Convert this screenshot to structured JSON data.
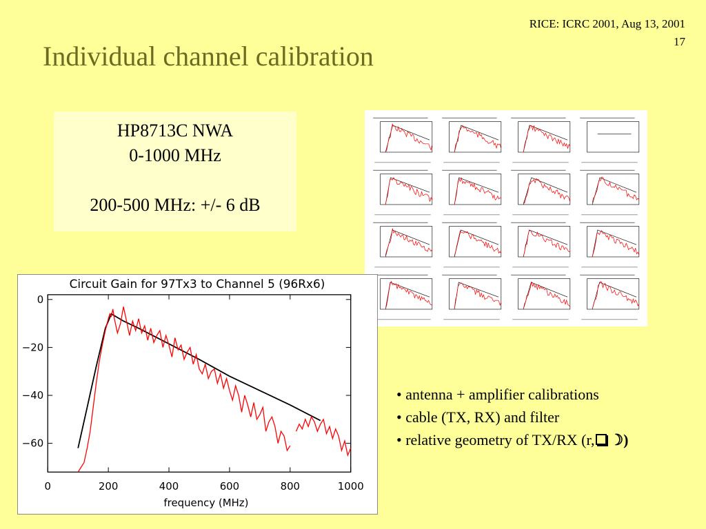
{
  "header": {
    "meta": "RICE: ICRC 2001, Aug 13, 2001",
    "page_number": "17"
  },
  "title": "Individual channel calibration",
  "nwa_box": {
    "line1": "HP8713C NWA",
    "line2": "0-1000 MHz",
    "line3": "200-500 MHz:  +/- 6 dB"
  },
  "bullets": [
    "antenna + amplifier calibrations",
    "cable (TX, RX) and filter",
    "relative geometry of TX/RX (r,"
  ],
  "bullet_icons": [
    "square-shadow-icon",
    "moon-icon"
  ],
  "colors": {
    "background": "#ffff99",
    "title": "#6b6b22",
    "box": "#ffffcc",
    "measured": "#ff0000",
    "model": "#000000"
  },
  "thumbnail_grid": {
    "rows": 4,
    "cols": 4,
    "flat_cell": 3
  },
  "chart_data": {
    "type": "line",
    "title": "Circuit Gain for 97Tx3 to Channel 5 (96Rx6)",
    "xlabel": "frequency (MHz)",
    "ylabel": "",
    "xlim": [
      0,
      1000
    ],
    "ylim": [
      -72,
      2
    ],
    "xticks": [
      0,
      200,
      400,
      600,
      800,
      1000
    ],
    "yticks": [
      0,
      -20,
      -40,
      -60
    ],
    "grid": false,
    "series": [
      {
        "color": "#000000",
        "x": [
          100,
          130,
          160,
          190,
          210,
          250,
          300,
          400,
          500,
          600,
          700,
          800,
          900
        ],
        "y": [
          -62,
          -45,
          -28,
          -12,
          -6,
          -9,
          -12,
          -18.5,
          -25,
          -32,
          -38,
          -44,
          -50.5
        ]
      },
      {
        "color": "#ff0000",
        "x": [
          100,
          110,
          120,
          130,
          140,
          150,
          160,
          170,
          180,
          190,
          200,
          205,
          210,
          215,
          220,
          230,
          240,
          250,
          260,
          270,
          280,
          290,
          300,
          310,
          320,
          330,
          340,
          350,
          360,
          370,
          380,
          390,
          400,
          410,
          420,
          430,
          440,
          450,
          460,
          470,
          480,
          490,
          500,
          510,
          520,
          530,
          540,
          550,
          560,
          570,
          580,
          590,
          600,
          610,
          620,
          630,
          640,
          650,
          660,
          670,
          680,
          690,
          700,
          710,
          720,
          730,
          740,
          750,
          760,
          770,
          780,
          790,
          800
        ],
        "y": [
          -72,
          -70,
          -68,
          -62,
          -55,
          -45,
          -35,
          -26,
          -19,
          -13,
          -8,
          -6,
          -7,
          -4,
          -8,
          -14,
          -10,
          -3,
          -9,
          -15,
          -9,
          -13,
          -8,
          -14,
          -11,
          -17,
          -12,
          -18,
          -15,
          -13,
          -20,
          -15,
          -19,
          -24,
          -16,
          -21,
          -19,
          -25,
          -22,
          -20,
          -27,
          -23,
          -29,
          -31,
          -27,
          -33,
          -30,
          -29,
          -35,
          -31,
          -37,
          -33,
          -38,
          -42,
          -36,
          -40,
          -47,
          -40,
          -44,
          -49,
          -43,
          -50,
          -48,
          -45,
          -55,
          -51,
          -49,
          -53,
          -60,
          -55,
          -57,
          -63,
          -61
        ]
      },
      {
        "color": "#ff0000",
        "x": [
          820,
          830,
          840,
          850,
          860,
          870,
          880,
          890,
          900,
          910,
          920,
          930,
          940,
          950,
          960,
          970,
          980,
          990,
          1000
        ],
        "y": [
          -55,
          -52,
          -54,
          -50,
          -53,
          -49,
          -51,
          -55,
          -52,
          -50,
          -56,
          -53,
          -58,
          -54,
          -57,
          -63,
          -59,
          -65,
          -62
        ]
      }
    ]
  }
}
